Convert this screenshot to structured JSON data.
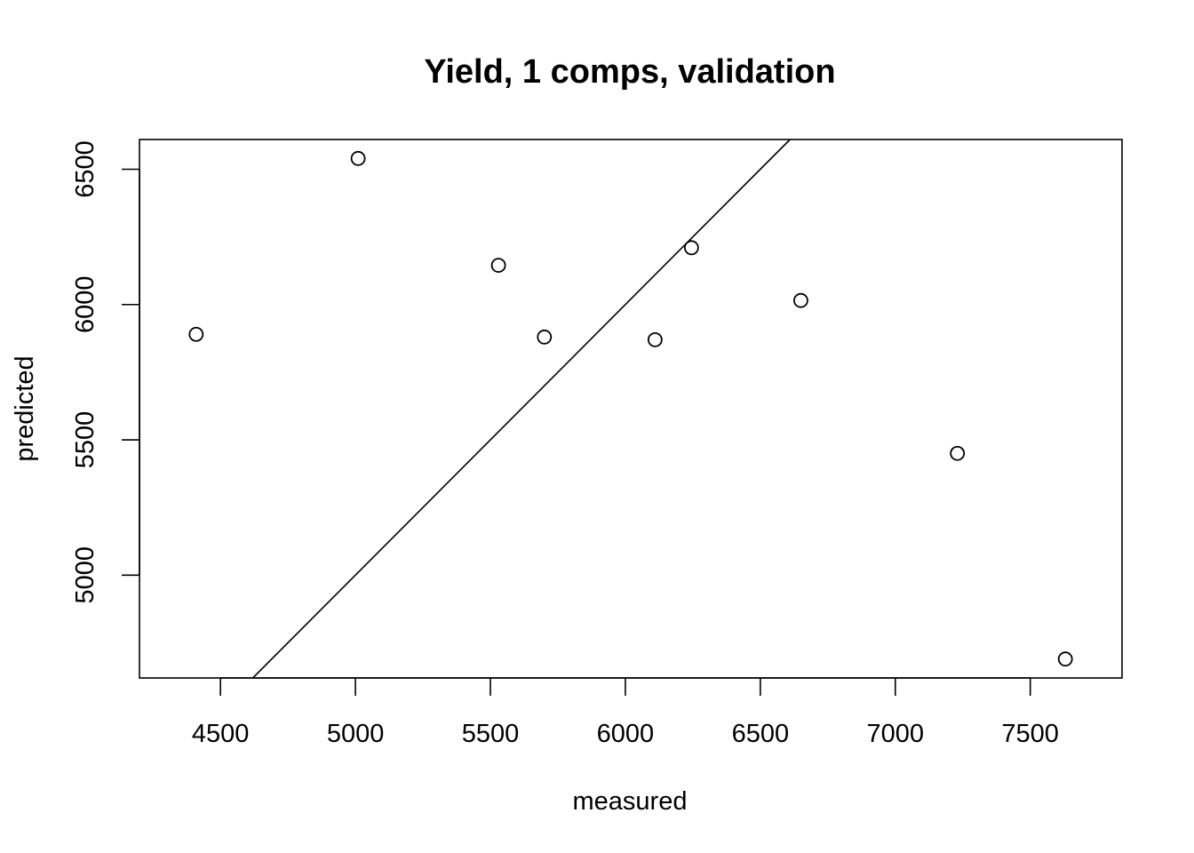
{
  "chart_data": {
    "type": "scatter",
    "title": "Yield, 1 comps, validation",
    "xlabel": "measured",
    "ylabel": "predicted",
    "xlim": [
      4200,
      7840
    ],
    "ylim": [
      4620,
      6610
    ],
    "x_ticks": [
      4500,
      5000,
      5500,
      6000,
      6500,
      7000,
      7500
    ],
    "y_ticks": [
      5000,
      5500,
      6000,
      6500
    ],
    "grid": false,
    "points": [
      {
        "x": 4410,
        "y": 5890
      },
      {
        "x": 5010,
        "y": 6540
      },
      {
        "x": 5530,
        "y": 6145
      },
      {
        "x": 5700,
        "y": 5880
      },
      {
        "x": 6110,
        "y": 5870
      },
      {
        "x": 6245,
        "y": 6210
      },
      {
        "x": 6650,
        "y": 6015
      },
      {
        "x": 7230,
        "y": 5450
      },
      {
        "x": 7630,
        "y": 4690
      }
    ],
    "reference_line": {
      "type": "identity",
      "slope": 1,
      "intercept": 0
    }
  }
}
